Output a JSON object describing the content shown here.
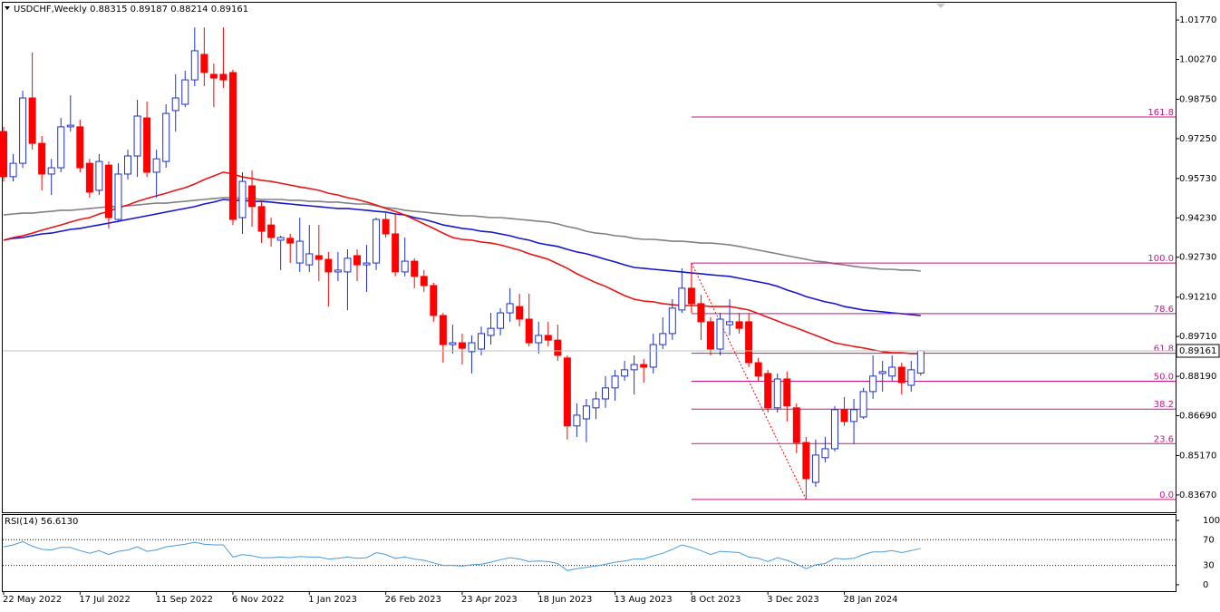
{
  "chart_data": {
    "type": "candlestick",
    "symbol": "USDCHF,Weekly",
    "categories": [
      "22 May 2022",
      null,
      null,
      null,
      null,
      null,
      null,
      null,
      "17 Jul 2022",
      null,
      null,
      null,
      null,
      null,
      null,
      null,
      "11 Sep 2022",
      null,
      null,
      null,
      null,
      null,
      null,
      null,
      "6 Nov 2022",
      null,
      null,
      null,
      null,
      null,
      null,
      null,
      "1 Jan 2023",
      null,
      null,
      null,
      null,
      null,
      null,
      null,
      "26 Feb 2023",
      null,
      null,
      null,
      null,
      null,
      null,
      null,
      "23 Apr 2023",
      null,
      null,
      null,
      null,
      null,
      null,
      null,
      "18 Jun 2023",
      null,
      null,
      null,
      null,
      null,
      null,
      null,
      "13 Aug 2023",
      null,
      null,
      null,
      null,
      null,
      null,
      null,
      "8 Oct 2023",
      null,
      null,
      null,
      null,
      null,
      null,
      null,
      "3 Dec 2023",
      null,
      null,
      null,
      null,
      null,
      null,
      null,
      "28 Jan 2024",
      null,
      null,
      null,
      null,
      null,
      null,
      null,
      null
    ],
    "open": [
      0.9752,
      0.958,
      0.9631,
      0.988,
      0.9707,
      0.959,
      0.9614,
      0.977,
      0.977,
      0.9631,
      0.9528,
      0.9624,
      0.9417,
      0.959,
      0.9659,
      0.9804,
      0.9597,
      0.9638,
      0.9832,
      0.9856,
      0.9949,
      1.0046,
      0.997,
      0.997,
      0.9977,
      0.9424,
      0.9545,
      0.9466,
      0.9396,
      0.9338,
      0.9345,
      0.9251,
      0.9244,
      0.9279,
      0.9265,
      0.9217,
      0.9217,
      0.9279,
      0.9244,
      0.9251,
      0.9417,
      0.9362,
      0.9217,
      0.9258,
      0.92,
      0.9165,
      0.9051,
      0.894,
      0.8947,
      0.8913,
      0.8923,
      0.8975,
      0.9002,
      0.9061,
      0.9085,
      0.9037,
      0.8947,
      0.8975,
      0.8957,
      0.8889,
      0.863,
      0.8657,
      0.8699,
      0.8733,
      0.8775,
      0.882,
      0.8844,
      0.8864,
      0.8854,
      0.894,
      0.8982,
      0.9072,
      0.9155,
      0.9096,
      0.9027,
      0.8923,
      0.9016,
      0.9027,
      0.9027,
      0.8871,
      0.883,
      0.8699,
      0.8809,
      0.8699,
      0.8567,
      0.8415,
      0.8509,
      0.8543,
      0.8692,
      0.8647,
      0.8664,
      0.8761,
      0.883,
      0.882,
      0.8854,
      0.8785,
      0.88315
    ],
    "high": [
      0.977,
      0.9666,
      0.9908,
      1.0053,
      0.9735,
      0.9648,
      0.9804,
      0.989,
      0.9797,
      0.9648,
      0.9666,
      0.9638,
      0.9631,
      0.9683,
      0.9873,
      0.9866,
      0.9683,
      0.9856,
      0.997,
      0.9984,
      1.0149,
      1.0149,
      1.0011,
      1.0149,
      0.9988,
      0.9597,
      0.9604,
      0.9486,
      0.9424,
      0.9355,
      0.9362,
      0.9424,
      0.9396,
      0.9396,
      0.9293,
      0.9293,
      0.9303,
      0.9303,
      0.932,
      0.9424,
      0.9441,
      0.9441,
      0.9348,
      0.9269,
      0.9224,
      0.9176,
      0.9061,
      0.9016,
      0.8982,
      0.8975,
      0.9009,
      0.9061,
      0.9078,
      0.9155,
      0.9134,
      0.9134,
      0.9027,
      0.9027,
      0.9016,
      0.8899,
      0.8716,
      0.8733,
      0.8761,
      0.882,
      0.8844,
      0.8878,
      0.8899,
      0.8885,
      0.8982,
      0.9044,
      0.9113,
      0.9231,
      0.9251,
      0.913,
      0.9044,
      0.9061,
      0.9113,
      0.9061,
      0.9061,
      0.8889,
      0.8844,
      0.883,
      0.8837,
      0.8716,
      0.8588,
      0.8578,
      0.8588,
      0.8706,
      0.874,
      0.8733,
      0.8775,
      0.8899,
      0.8878,
      0.8899,
      0.8871,
      0.8878,
      0.89187
    ],
    "low": [
      0.9562,
      0.9562,
      0.9614,
      0.9683,
      0.9528,
      0.951,
      0.9597,
      0.9752,
      0.9597,
      0.95,
      0.951,
      0.9382,
      0.9407,
      0.9569,
      0.9579,
      0.9579,
      0.95,
      0.9614,
      0.9752,
      0.9845,
      0.9925,
      0.9925,
      0.9845,
      0.9918,
      0.9396,
      0.9362,
      0.9389,
      0.9327,
      0.9313,
      0.9224,
      0.9251,
      0.9217,
      0.9217,
      0.9182,
      0.9085,
      0.9182,
      0.9071,
      0.9182,
      0.9141,
      0.9224,
      0.9348,
      0.92,
      0.92,
      0.9155,
      0.9141,
      0.9027,
      0.8871,
      0.8906,
      0.8864,
      0.883,
      0.8899,
      0.894,
      0.8975,
      0.9027,
      0.9009,
      0.8933,
      0.8906,
      0.8933,
      0.8878,
      0.8578,
      0.8588,
      0.8568,
      0.8657,
      0.8699,
      0.8726,
      0.8802,
      0.875,
      0.8795,
      0.883,
      0.8923,
      0.8958,
      0.9061,
      0.9061,
      0.8958,
      0.8899,
      0.8899,
      0.8975,
      0.8982,
      0.8854,
      0.8802,
      0.8681,
      0.8681,
      0.8647,
      0.8526,
      0.835,
      0.8398,
      0.8491,
      0.8533,
      0.863,
      0.8561,
      0.8657,
      0.8733,
      0.8761,
      0.8802,
      0.875,
      0.8761,
      0.88214
    ],
    "close": [
      0.958,
      0.9631,
      0.988,
      0.9707,
      0.959,
      0.9614,
      0.977,
      0.9776,
      0.9614,
      0.9521,
      0.9638,
      0.9424,
      0.959,
      0.9659,
      0.9811,
      0.9597,
      0.9648,
      0.9821,
      0.988,
      0.9949,
      1.006,
      0.9977,
      0.9956,
      0.9949,
      0.9417,
      0.9562,
      0.9466,
      0.9372,
      0.9348,
      0.9348,
      0.9327,
      0.9334,
      0.9286,
      0.9265,
      0.9217,
      0.9224,
      0.9269,
      0.9244,
      0.9251,
      0.9417,
      0.9362,
      0.9217,
      0.9258,
      0.92,
      0.9165,
      0.9051,
      0.894,
      0.8947,
      0.8926,
      0.8947,
      0.8982,
      0.9002,
      0.9061,
      0.9096,
      0.9037,
      0.8947,
      0.8975,
      0.8957,
      0.8899,
      0.863,
      0.8671,
      0.8706,
      0.8733,
      0.8775,
      0.882,
      0.8844,
      0.8864,
      0.8854,
      0.894,
      0.8982,
      0.9079,
      0.9155,
      0.9096,
      0.9027,
      0.8923,
      0.9037,
      0.9027,
      0.9002,
      0.8871,
      0.882,
      0.8699,
      0.8809,
      0.8706,
      0.8567,
      0.8429,
      0.8519,
      0.8543,
      0.8692,
      0.8647,
      0.8692,
      0.8761,
      0.882,
      0.8837,
      0.8854,
      0.8795,
      0.8844,
      0.89161
    ],
    "up_color": "#1d2fd0",
    "down_color": "#ff0000",
    "ylim": [
      0.8301,
      1.0243
    ],
    "yticks": [
      {
        "value": 1.0177,
        "label": "1.01770"
      },
      {
        "value": 1.0027,
        "label": "1.00270"
      },
      {
        "value": 0.9875,
        "label": "0.98750"
      },
      {
        "value": 0.9725,
        "label": "0.97250"
      },
      {
        "value": 0.9573,
        "label": "0.95730"
      },
      {
        "value": 0.9423,
        "label": "0.94230"
      },
      {
        "value": 0.9273,
        "label": "0.92730"
      },
      {
        "value": 0.9121,
        "label": "0.91210"
      },
      {
        "value": 0.8971,
        "label": "0.89710"
      },
      {
        "value": 0.8819,
        "label": "0.88190"
      },
      {
        "value": 0.8669,
        "label": "0.86690"
      },
      {
        "value": 0.8517,
        "label": "0.85170"
      },
      {
        "value": 0.8367,
        "label": "0.83670"
      }
    ],
    "moving_averages": [
      {
        "color": "#808080",
        "values": [
          0.9434,
          0.9438,
          0.9441,
          0.9441,
          0.9445,
          0.9448,
          0.9452,
          0.9452,
          0.9455,
          0.9459,
          0.9462,
          0.9466,
          0.9466,
          0.9469,
          0.9472,
          0.9476,
          0.9479,
          0.9479,
          0.9483,
          0.9486,
          0.949,
          0.9493,
          0.9497,
          0.95,
          0.95,
          0.9497,
          0.9497,
          0.9493,
          0.9493,
          0.9493,
          0.949,
          0.949,
          0.9486,
          0.9486,
          0.9483,
          0.9483,
          0.9479,
          0.9476,
          0.9476,
          0.9469,
          0.9462,
          0.9459,
          0.9452,
          0.9448,
          0.9445,
          0.9441,
          0.9438,
          0.9434,
          0.9431,
          0.9431,
          0.9428,
          0.9424,
          0.9424,
          0.9421,
          0.9417,
          0.9414,
          0.941,
          0.9407,
          0.94,
          0.939,
          0.9383,
          0.9372,
          0.9365,
          0.9362,
          0.9355,
          0.9352,
          0.9345,
          0.9341,
          0.9341,
          0.9338,
          0.9334,
          0.9334,
          0.9331,
          0.9327,
          0.9327,
          0.9324,
          0.932,
          0.9314,
          0.9307,
          0.93,
          0.9293,
          0.9286,
          0.9279,
          0.9272,
          0.9265,
          0.9258,
          0.9255,
          0.9248,
          0.9244,
          0.9238,
          0.9234,
          0.9231,
          0.9227,
          0.9227,
          0.9224,
          0.9224,
          0.922
        ]
      },
      {
        "color": "#1515d0",
        "values": [
          0.9338,
          0.9345,
          0.9348,
          0.9355,
          0.9362,
          0.9365,
          0.9372,
          0.9379,
          0.9383,
          0.939,
          0.9396,
          0.9403,
          0.941,
          0.9417,
          0.9424,
          0.9431,
          0.9438,
          0.9445,
          0.9452,
          0.9459,
          0.9466,
          0.9476,
          0.9483,
          0.9493,
          0.949,
          0.949,
          0.9486,
          0.9486,
          0.9483,
          0.9479,
          0.9476,
          0.9472,
          0.9469,
          0.9466,
          0.9462,
          0.9459,
          0.9459,
          0.9455,
          0.9452,
          0.9448,
          0.9445,
          0.9438,
          0.9434,
          0.9424,
          0.9417,
          0.9407,
          0.9396,
          0.939,
          0.9383,
          0.9379,
          0.9372,
          0.9369,
          0.9362,
          0.9355,
          0.9345,
          0.9338,
          0.9327,
          0.932,
          0.9314,
          0.9303,
          0.9293,
          0.9286,
          0.9276,
          0.9265,
          0.9255,
          0.9244,
          0.9234,
          0.9231,
          0.9227,
          0.9224,
          0.922,
          0.9217,
          0.9213,
          0.921,
          0.9206,
          0.9203,
          0.92,
          0.9193,
          0.9186,
          0.9179,
          0.9172,
          0.9162,
          0.9148,
          0.9137,
          0.9123,
          0.9113,
          0.9103,
          0.9096,
          0.9085,
          0.9079,
          0.9072,
          0.9068,
          0.9065,
          0.9061,
          0.9058,
          0.9054,
          0.9051
        ]
      },
      {
        "color": "#e81515",
        "values": [
          0.9338,
          0.9348,
          0.9355,
          0.9365,
          0.9376,
          0.9386,
          0.9396,
          0.9407,
          0.9417,
          0.9424,
          0.9438,
          0.9448,
          0.9462,
          0.9472,
          0.9486,
          0.9497,
          0.9507,
          0.9517,
          0.9528,
          0.9538,
          0.9552,
          0.9569,
          0.9583,
          0.9597,
          0.959,
          0.9579,
          0.9573,
          0.9566,
          0.9562,
          0.9555,
          0.9548,
          0.9541,
          0.9535,
          0.9528,
          0.9517,
          0.951,
          0.95,
          0.9493,
          0.9483,
          0.9472,
          0.9459,
          0.9448,
          0.9434,
          0.9417,
          0.94,
          0.9383,
          0.9365,
          0.9348,
          0.9341,
          0.9338,
          0.9331,
          0.9327,
          0.932,
          0.931,
          0.93,
          0.9286,
          0.9276,
          0.9265,
          0.9248,
          0.9231,
          0.921,
          0.9193,
          0.9176,
          0.9162,
          0.9144,
          0.9127,
          0.9113,
          0.9106,
          0.9103,
          0.9096,
          0.9092,
          0.9089,
          0.9089,
          0.9089,
          0.9085,
          0.9085,
          0.9085,
          0.9079,
          0.9072,
          0.9058,
          0.9044,
          0.903,
          0.9016,
          0.9003,
          0.8989,
          0.8975,
          0.8961,
          0.8947,
          0.894,
          0.8933,
          0.8927,
          0.892,
          0.8913,
          0.8909,
          0.8909,
          0.8906,
          0.8906
        ]
      }
    ],
    "fibonacci": {
      "color": "#c71585",
      "high": 0.9251,
      "low": 0.835,
      "levels": [
        161.8,
        {
          "value": 100,
          "label": "100.0"
        },
        78.6,
        61.8,
        {
          "value": 50,
          "label": "50.0"
        },
        38.2,
        23.6,
        {
          "value": 0,
          "label": "0.0"
        }
      ]
    },
    "rsi": {
      "name": "RSI(14)",
      "current_label": "56.6130",
      "color": "#4a9bdc",
      "values": [
        59,
        62,
        67,
        60,
        55,
        54,
        58,
        58,
        53,
        49,
        53,
        47,
        52,
        54,
        59,
        52,
        54,
        59,
        61,
        63,
        66,
        63,
        62,
        62,
        43,
        47,
        45,
        42,
        42,
        43,
        42,
        44,
        43,
        43,
        40,
        41,
        43,
        41,
        42,
        50,
        47,
        41,
        43,
        40,
        38,
        34,
        30,
        30,
        29,
        31,
        32,
        35,
        39,
        42,
        40,
        36,
        37,
        36,
        33,
        22,
        25,
        27,
        29,
        32,
        35,
        37,
        40,
        40,
        45,
        49,
        55,
        62,
        58,
        53,
        47,
        52,
        51,
        50,
        43,
        41,
        36,
        42,
        38,
        32,
        25,
        31,
        33,
        41,
        40,
        41,
        47,
        51,
        51,
        53,
        50,
        53,
        56.613
      ],
      "ylim": [
        -10,
        108.5
      ],
      "yticks": [
        100,
        70,
        30,
        0
      ]
    }
  }
}
